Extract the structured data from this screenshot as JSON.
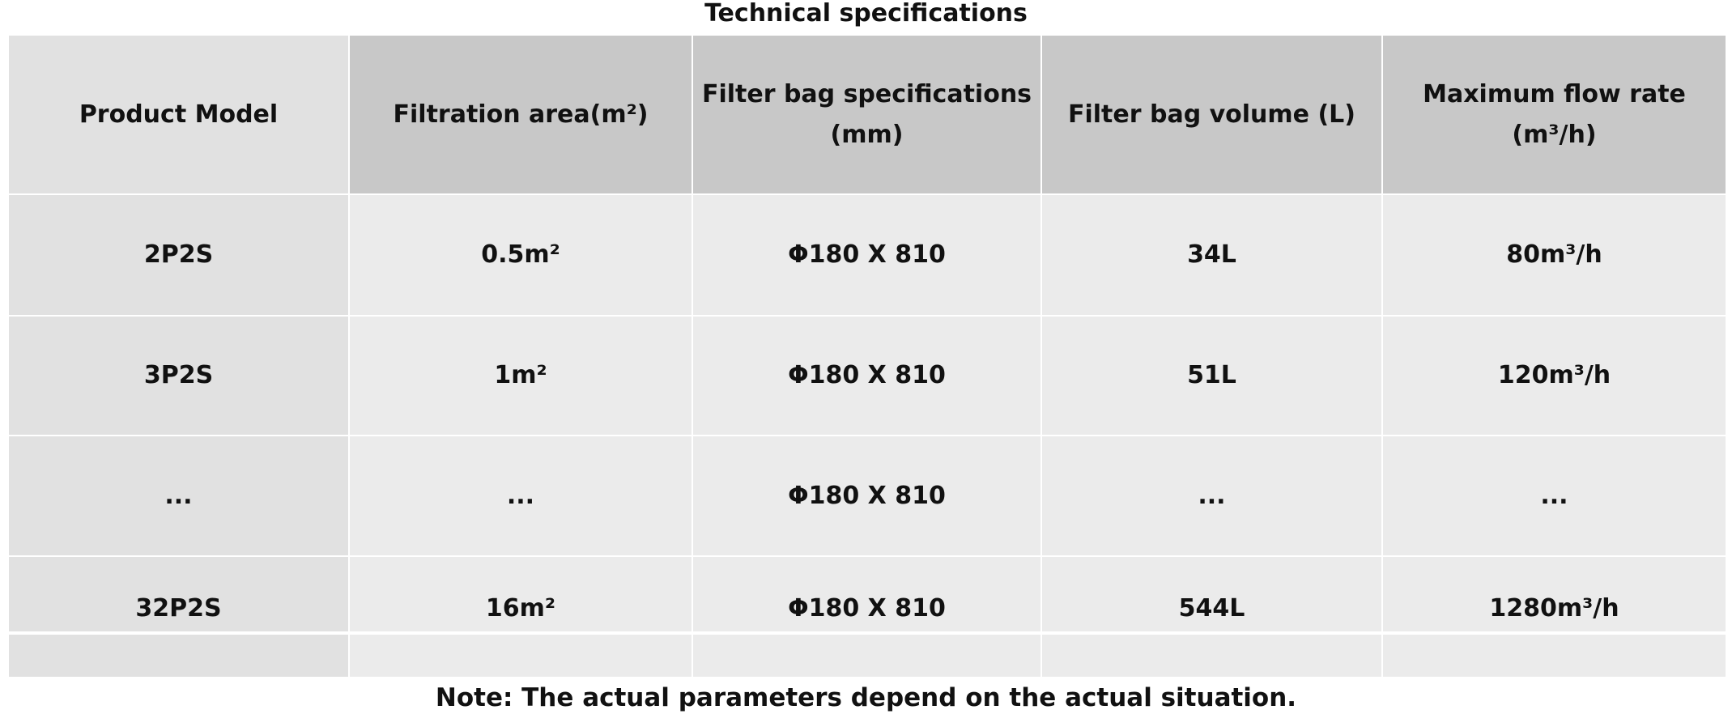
{
  "title": "Technical specifications",
  "table": {
    "header": [
      "Product Model",
      "Filtration area(m²)",
      "Filter bag specifications (mm)",
      "Filter bag volume (L)",
      "Maximum flow rate (m³/h)"
    ],
    "rows": [
      [
        "2P2S",
        "0.5m²",
        "Φ180 X 810",
        "34L",
        "80m³/h"
      ],
      [
        "3P2S",
        "1m²",
        "Φ180 X 810",
        "51L",
        "120m³/h"
      ],
      [
        "...",
        "...",
        "Φ180 X 810",
        "...",
        "..."
      ],
      [
        "32P2S",
        "16m²",
        "Φ180 X 810",
        "544L",
        "1280m³/h"
      ]
    ]
  },
  "note": "Note: The actual parameters depend on the actual situation."
}
